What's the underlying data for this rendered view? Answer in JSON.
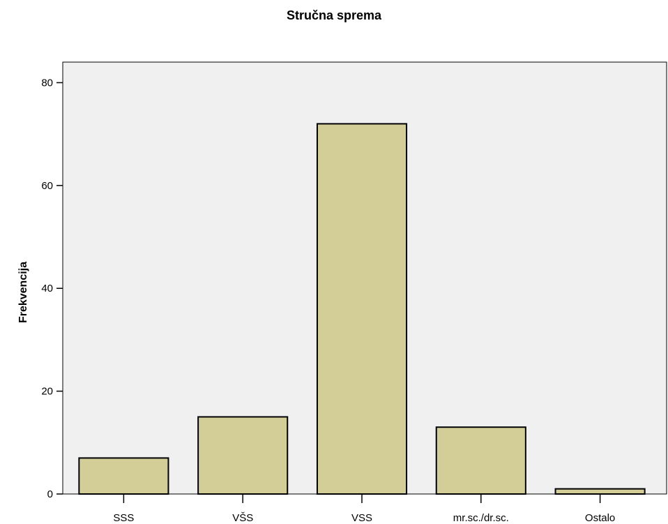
{
  "chart_data": {
    "type": "bar",
    "title": "Stručna sprema",
    "xlabel": "",
    "ylabel": "Frekvencija",
    "categories": [
      "SSS",
      "VŠS",
      "VSS",
      "mr.sc./dr.sc.",
      "Ostalo"
    ],
    "values": [
      7,
      15,
      72,
      13,
      1
    ],
    "ylim": [
      0,
      84
    ],
    "yticks": [
      0,
      20,
      40,
      60,
      80
    ],
    "grid": false,
    "legend": "none",
    "colors": {
      "bar_fill": "#d3ce98",
      "bar_stroke": "#000000",
      "plot_background": "#f0f0f0"
    }
  }
}
